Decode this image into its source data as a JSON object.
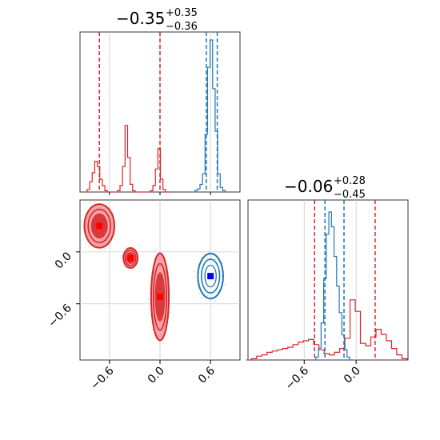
{
  "chart_data": {
    "type": "corner",
    "colors": {
      "red": "#d62728",
      "blue": "#1f77b4",
      "red_fill": "#f4a3a8",
      "marker_red": "#ff0000",
      "marker_blue": "#0000ff"
    },
    "grid": true,
    "parameters": [
      {
        "title": {
          "value": "−0.35",
          "plus": "+0.35",
          "minus": "−0.36"
        },
        "range": [
          -0.95,
          0.95
        ],
        "ticks": [
          -0.6,
          0.0,
          0.6
        ],
        "tick_labels": [
          "−0.6",
          "0.0",
          "0.6"
        ],
        "quantiles_red": [
          -0.72,
          0.0
        ],
        "quantiles_blue": [
          0.55,
          0.68
        ],
        "hist_red": {
          "x": [
            -0.88,
            -0.85,
            -0.82,
            -0.79,
            -0.76,
            -0.73,
            -0.7,
            -0.67,
            -0.64,
            -0.61,
            -0.58,
            -0.55,
            -0.52,
            -0.49,
            -0.46,
            -0.43,
            -0.4,
            -0.37,
            -0.34,
            -0.31,
            -0.28,
            -0.25,
            -0.22,
            -0.19,
            -0.16,
            -0.13,
            -0.1,
            -0.07,
            -0.04,
            -0.01,
            0.02,
            0.05,
            0.08,
            0.11
          ],
          "y": [
            0,
            0.02,
            0.08,
            0.15,
            0.24,
            0.2,
            0.1,
            0.05,
            0.01,
            0,
            0,
            0,
            0,
            0.01,
            0.05,
            0.2,
            0.52,
            0.27,
            0.06,
            0.01,
            0,
            0,
            0,
            0,
            0,
            0,
            0.01,
            0.05,
            0.18,
            0.34,
            0.1,
            0.02,
            0,
            0
          ]
        },
        "hist_blue": {
          "x": [
            0.4,
            0.43,
            0.46,
            0.49,
            0.52,
            0.55,
            0.58,
            0.61,
            0.64,
            0.67,
            0.7,
            0.73,
            0.76,
            0.79
          ],
          "y": [
            0,
            0.01,
            0.02,
            0.05,
            0.12,
            0.38,
            0.82,
            1.0,
            0.68,
            0.4,
            0.12,
            0.03,
            0.01,
            0
          ]
        }
      },
      {
        "title": {
          "value": "−0.06",
          "plus": "+0.28",
          "minus": "−0.45"
        },
        "range": [
          -1.25,
          0.6
        ],
        "ticks": [
          -0.6,
          0.0
        ],
        "tick_labels": [
          "−0.6",
          "0.0"
        ],
        "quantiles_red": [
          -0.48,
          0.22
        ],
        "quantiles_blue": [
          -0.36,
          -0.14
        ],
        "hist_red": {
          "x": [
            -1.24,
            -1.18,
            -1.12,
            -1.06,
            -1.0,
            -0.94,
            -0.88,
            -0.82,
            -0.76,
            -0.7,
            -0.64,
            -0.58,
            -0.52,
            -0.46,
            -0.4,
            -0.34,
            -0.28,
            -0.22,
            -0.16,
            -0.1,
            -0.04,
            0.02,
            0.08,
            0.14,
            0.2,
            0.26,
            0.32,
            0.38,
            0.44,
            0.5,
            0.56
          ],
          "y": [
            0,
            0.01,
            0.03,
            0.04,
            0.06,
            0.07,
            0.08,
            0.09,
            0.1,
            0.12,
            0.14,
            0.15,
            0.16,
            0.12,
            0.08,
            0.05,
            0.04,
            0.06,
            0.09,
            0.17,
            0.47,
            0.38,
            0.13,
            0.11,
            0.18,
            0.24,
            0.2,
            0.15,
            0.09,
            0.04,
            0.01
          ]
        },
        "hist_blue": {
          "x": [
            -0.48,
            -0.45,
            -0.42,
            -0.39,
            -0.36,
            -0.33,
            -0.3,
            -0.27,
            -0.24,
            -0.21,
            -0.18,
            -0.15,
            -0.12,
            -0.09,
            -0.06
          ],
          "y": [
            0,
            0.02,
            0.08,
            0.25,
            0.55,
            0.85,
            1.0,
            0.9,
            0.7,
            0.5,
            0.32,
            0.17,
            0.07,
            0.02,
            0
          ]
        }
      }
    ],
    "blobs_red": [
      {
        "cx": -0.72,
        "cy": 0.3,
        "rx": 0.17,
        "ry": 0.24,
        "marker": true
      },
      {
        "cx": -0.35,
        "cy": -0.07,
        "rx": 0.08,
        "ry": 0.11,
        "marker": true
      },
      {
        "cx": 0.0,
        "cy": -0.52,
        "rx": 0.1,
        "ry": 0.48,
        "marker": true
      }
    ],
    "blobs_blue": [
      {
        "cx": 0.6,
        "cy": -0.28,
        "rx": 0.15,
        "ry": 0.26,
        "marker": true
      }
    ]
  }
}
